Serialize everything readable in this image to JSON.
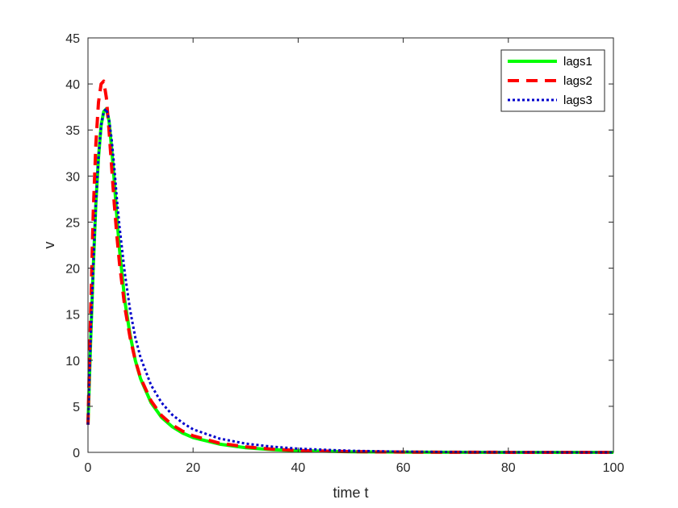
{
  "chart_data": {
    "type": "line",
    "title": "",
    "xlabel": "time t",
    "ylabel": "v",
    "xlim": [
      0,
      100
    ],
    "ylim": [
      0,
      45
    ],
    "xticks": [
      0,
      20,
      40,
      60,
      80,
      100
    ],
    "yticks": [
      0,
      5,
      10,
      15,
      20,
      25,
      30,
      35,
      40,
      45
    ],
    "grid": false,
    "legend_position": "top-right",
    "series": [
      {
        "name": "lags1",
        "color": "#00ff00",
        "style": "solid",
        "x": [
          0,
          0.5,
          1,
          1.5,
          2,
          2.5,
          3,
          3.5,
          4,
          4.5,
          5,
          5.5,
          6,
          7,
          8,
          9,
          10,
          12,
          14,
          16,
          18,
          20,
          25,
          30,
          35,
          40,
          50,
          60,
          70,
          80,
          90,
          100
        ],
        "y": [
          3,
          12,
          20,
          27,
          32,
          35.5,
          37,
          37.3,
          36,
          33,
          29.5,
          25.5,
          22,
          16.5,
          12.8,
          10,
          8,
          5.4,
          3.8,
          2.8,
          2.1,
          1.6,
          0.9,
          0.5,
          0.3,
          0.18,
          0.07,
          0.03,
          0.01,
          0.005,
          0.002,
          0.001
        ]
      },
      {
        "name": "lags2",
        "color": "#ff0000",
        "style": "dashed",
        "x": [
          0,
          0.5,
          1,
          1.5,
          2,
          2.5,
          3,
          3.5,
          4,
          4.5,
          5,
          5.5,
          6,
          7,
          8,
          9,
          10,
          12,
          14,
          16,
          18,
          20,
          25,
          30,
          35,
          40,
          50,
          60,
          70,
          80,
          90,
          100
        ],
        "y": [
          3,
          15,
          26,
          33.5,
          38,
          40,
          40.3,
          38.5,
          35,
          31,
          27,
          23.5,
          20.5,
          15.8,
          12.5,
          10,
          8.1,
          5.6,
          4,
          3,
          2.3,
          1.8,
          1,
          0.6,
          0.35,
          0.2,
          0.08,
          0.03,
          0.01,
          0.005,
          0.002,
          0.001
        ]
      },
      {
        "name": "lags3",
        "color": "#0000cc",
        "style": "dotted",
        "x": [
          0,
          0.5,
          1,
          1.5,
          2,
          2.5,
          3,
          3.5,
          4,
          4.5,
          5,
          5.5,
          6,
          7,
          8,
          9,
          10,
          12,
          14,
          16,
          18,
          20,
          25,
          30,
          35,
          40,
          50,
          60,
          70,
          80,
          90,
          100
        ],
        "y": [
          3,
          12,
          20,
          27,
          32,
          35.5,
          37,
          37.3,
          36.2,
          34,
          31,
          27.5,
          24.5,
          19.5,
          15.5,
          12.5,
          10.3,
          7.3,
          5.4,
          4.1,
          3.2,
          2.5,
          1.5,
          0.95,
          0.62,
          0.4,
          0.17,
          0.07,
          0.03,
          0.012,
          0.005,
          0.002
        ]
      }
    ]
  }
}
